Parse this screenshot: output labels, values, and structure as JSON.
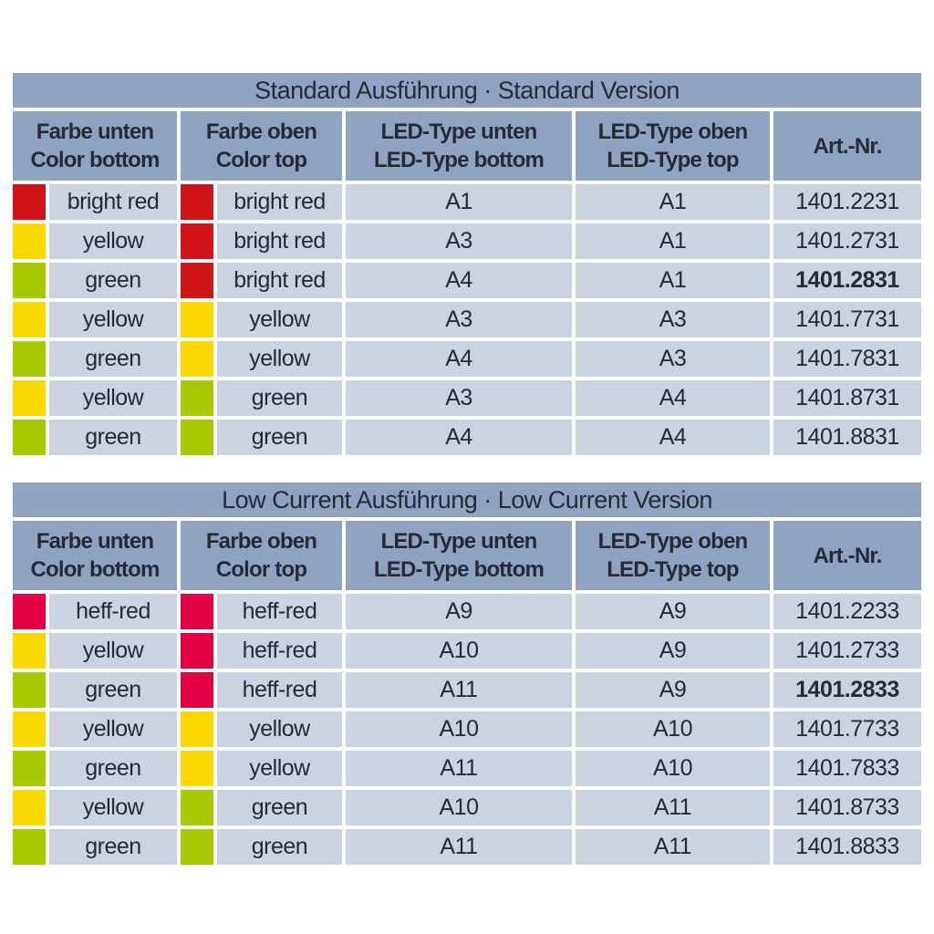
{
  "colors": {
    "band": "#8fa3c0",
    "row_bg": "#ccd3e0",
    "text": "#242b36",
    "bright_red": "#d0141a",
    "yellow": "#fcd800",
    "green": "#a8c800",
    "heff_red": "#e10042"
  },
  "tables": [
    {
      "title": "Standard Ausführung · Standard Version",
      "headers": [
        {
          "line1": "Farbe unten",
          "line2": "Color bottom"
        },
        {
          "line1": "Farbe oben",
          "line2": "Color top"
        },
        {
          "line1": "LED-Type unten",
          "line2": "LED-Type bottom"
        },
        {
          "line1": "LED-Type oben",
          "line2": "LED-Type top"
        },
        {
          "line1": "Art.-Nr.",
          "line2": ""
        }
      ],
      "rows": [
        {
          "color_bottom": "bright red",
          "swatch_bottom": "bright_red",
          "color_top": "bright red",
          "swatch_top": "bright_red",
          "led_bottom": "A1",
          "led_top": "A1",
          "art_nr": "1401.2231",
          "art_bold": false
        },
        {
          "color_bottom": "yellow",
          "swatch_bottom": "yellow",
          "color_top": "bright red",
          "swatch_top": "bright_red",
          "led_bottom": "A3",
          "led_top": "A1",
          "art_nr": "1401.2731",
          "art_bold": false
        },
        {
          "color_bottom": "green",
          "swatch_bottom": "green",
          "color_top": "bright red",
          "swatch_top": "bright_red",
          "led_bottom": "A4",
          "led_top": "A1",
          "art_nr": "1401.2831",
          "art_bold": true
        },
        {
          "color_bottom": "yellow",
          "swatch_bottom": "yellow",
          "color_top": "yellow",
          "swatch_top": "yellow",
          "led_bottom": "A3",
          "led_top": "A3",
          "art_nr": "1401.7731",
          "art_bold": false
        },
        {
          "color_bottom": "green",
          "swatch_bottom": "green",
          "color_top": "yellow",
          "swatch_top": "yellow",
          "led_bottom": "A4",
          "led_top": "A3",
          "art_nr": "1401.7831",
          "art_bold": false
        },
        {
          "color_bottom": "yellow",
          "swatch_bottom": "yellow",
          "color_top": "green",
          "swatch_top": "green",
          "led_bottom": "A3",
          "led_top": "A4",
          "art_nr": "1401.8731",
          "art_bold": false
        },
        {
          "color_bottom": "green",
          "swatch_bottom": "green",
          "color_top": "green",
          "swatch_top": "green",
          "led_bottom": "A4",
          "led_top": "A4",
          "art_nr": "1401.8831",
          "art_bold": false
        }
      ]
    },
    {
      "title": "Low Current Ausführung · Low Current Version",
      "headers": [
        {
          "line1": "Farbe unten",
          "line2": "Color bottom"
        },
        {
          "line1": "Farbe oben",
          "line2": "Color top"
        },
        {
          "line1": "LED-Type unten",
          "line2": "LED-Type bottom"
        },
        {
          "line1": "LED-Type oben",
          "line2": "LED-Type top"
        },
        {
          "line1": "Art.-Nr.",
          "line2": ""
        }
      ],
      "rows": [
        {
          "color_bottom": "heff-red",
          "swatch_bottom": "heff_red",
          "color_top": "heff-red",
          "swatch_top": "heff_red",
          "led_bottom": "A9",
          "led_top": "A9",
          "art_nr": "1401.2233",
          "art_bold": false
        },
        {
          "color_bottom": "yellow",
          "swatch_bottom": "yellow",
          "color_top": "heff-red",
          "swatch_top": "heff_red",
          "led_bottom": "A10",
          "led_top": "A9",
          "art_nr": "1401.2733",
          "art_bold": false
        },
        {
          "color_bottom": "green",
          "swatch_bottom": "green",
          "color_top": "heff-red",
          "swatch_top": "heff_red",
          "led_bottom": "A11",
          "led_top": "A9",
          "art_nr": "1401.2833",
          "art_bold": true
        },
        {
          "color_bottom": "yellow",
          "swatch_bottom": "yellow",
          "color_top": "yellow",
          "swatch_top": "yellow",
          "led_bottom": "A10",
          "led_top": "A10",
          "art_nr": "1401.7733",
          "art_bold": false
        },
        {
          "color_bottom": "green",
          "swatch_bottom": "green",
          "color_top": "yellow",
          "swatch_top": "yellow",
          "led_bottom": "A11",
          "led_top": "A10",
          "art_nr": "1401.7833",
          "art_bold": false
        },
        {
          "color_bottom": "yellow",
          "swatch_bottom": "yellow",
          "color_top": "green",
          "swatch_top": "green",
          "led_bottom": "A10",
          "led_top": "A11",
          "art_nr": "1401.8733",
          "art_bold": false
        },
        {
          "color_bottom": "green",
          "swatch_bottom": "green",
          "color_top": "green",
          "swatch_top": "green",
          "led_bottom": "A11",
          "led_top": "A11",
          "art_nr": "1401.8833",
          "art_bold": false
        }
      ]
    }
  ]
}
